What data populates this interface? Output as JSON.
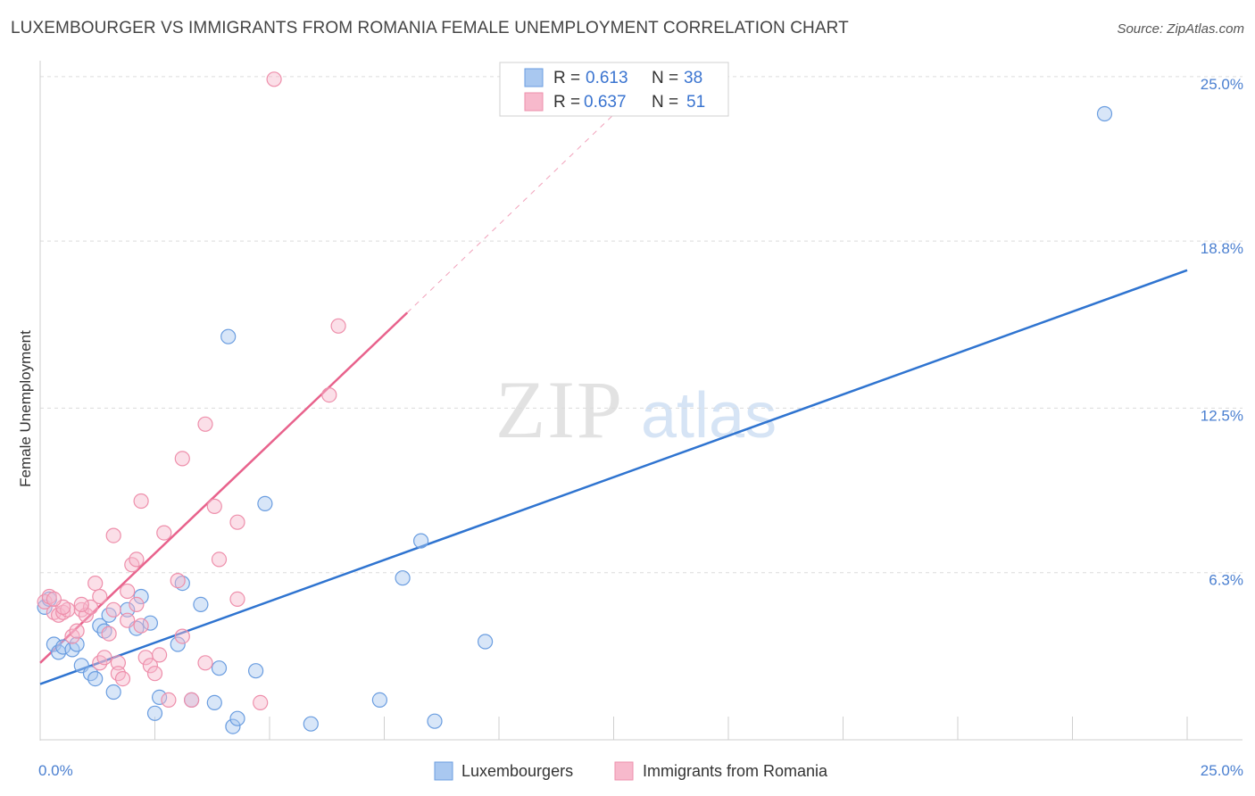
{
  "header": {
    "title": "LUXEMBOURGER VS IMMIGRANTS FROM ROMANIA FEMALE UNEMPLOYMENT CORRELATION CHART",
    "source": "Source: ZipAtlas.com"
  },
  "watermark": {
    "zip": "ZIP",
    "atlas": "atlas"
  },
  "colors": {
    "blue_fill": "#a9c8f0",
    "blue_stroke": "#6a9de0",
    "blue_line": "#2f74d0",
    "pink_fill": "#f7b9cc",
    "pink_stroke": "#ee8fab",
    "pink_line": "#e8628c",
    "tick_text": "#4a7fd0",
    "grid": "#dcdcdc"
  },
  "legend": {
    "r_label": "R =",
    "n_label": "N =",
    "rows": [
      {
        "series": "Luxembourgers",
        "r": "0.613",
        "n": "38"
      },
      {
        "series": "Immigrants from Romania",
        "r": "0.637",
        "n": "51"
      }
    ]
  },
  "bottom_legend": [
    "Luxembourgers",
    "Immigrants from Romania"
  ],
  "chart_data": {
    "type": "scatter",
    "title": "LUXEMBOURGER VS IMMIGRANTS FROM ROMANIA FEMALE UNEMPLOYMENT CORRELATION CHART",
    "xlabel": "",
    "ylabel": "Female Unemployment",
    "xlim": [
      0,
      25
    ],
    "ylim": [
      0,
      25.6
    ],
    "x_tick_labels": [
      {
        "value": 0,
        "label": "0.0%"
      },
      {
        "value": 25,
        "label": "25.0%"
      }
    ],
    "y_tick_labels": [
      {
        "value": 6.3,
        "label": "6.3%"
      },
      {
        "value": 12.5,
        "label": "12.5%"
      },
      {
        "value": 18.8,
        "label": "18.8%"
      },
      {
        "value": 25.0,
        "label": "25.0%"
      }
    ],
    "y_gridlines": [
      6.3,
      12.5,
      18.8,
      25.0
    ],
    "x_minor_ticks": [
      2.5,
      5,
      7.5,
      10,
      12.5,
      15,
      17.5,
      20,
      22.5,
      25
    ],
    "series": [
      {
        "name": "Luxembourgers",
        "r": 0.613,
        "n": 38,
        "trend": {
          "x0": 0,
          "y0": 2.1,
          "x1": 25,
          "y1": 17.7,
          "dashed_to": null
        },
        "points": [
          [
            0.1,
            5.0
          ],
          [
            0.2,
            5.3
          ],
          [
            0.3,
            3.6
          ],
          [
            0.4,
            3.3
          ],
          [
            0.5,
            3.5
          ],
          [
            0.7,
            3.4
          ],
          [
            0.8,
            3.6
          ],
          [
            0.9,
            2.8
          ],
          [
            1.1,
            2.5
          ],
          [
            1.2,
            2.3
          ],
          [
            1.3,
            4.3
          ],
          [
            1.4,
            4.1
          ],
          [
            1.5,
            4.7
          ],
          [
            1.6,
            1.8
          ],
          [
            1.9,
            4.9
          ],
          [
            2.1,
            4.2
          ],
          [
            2.2,
            5.4
          ],
          [
            2.4,
            4.4
          ],
          [
            2.5,
            1.0
          ],
          [
            2.6,
            1.6
          ],
          [
            3.0,
            3.6
          ],
          [
            3.1,
            5.9
          ],
          [
            3.3,
            1.5
          ],
          [
            3.5,
            5.1
          ],
          [
            3.8,
            1.4
          ],
          [
            3.9,
            2.7
          ],
          [
            4.1,
            15.2
          ],
          [
            4.2,
            0.5
          ],
          [
            4.3,
            0.8
          ],
          [
            4.7,
            2.6
          ],
          [
            4.9,
            8.9
          ],
          [
            5.9,
            0.6
          ],
          [
            7.4,
            1.5
          ],
          [
            7.9,
            6.1
          ],
          [
            8.3,
            7.5
          ],
          [
            8.6,
            0.7
          ],
          [
            9.7,
            3.7
          ],
          [
            23.2,
            23.6
          ]
        ]
      },
      {
        "name": "Immigrants from Romania",
        "r": 0.637,
        "n": 51,
        "trend": {
          "x0": 0,
          "y0": 2.9,
          "x1": 8.0,
          "y1": 16.1,
          "dashed_to": {
            "x": 13.0,
            "y": 24.4
          }
        },
        "points": [
          [
            0.1,
            5.2
          ],
          [
            0.2,
            5.4
          ],
          [
            0.3,
            4.8
          ],
          [
            0.4,
            4.7
          ],
          [
            0.5,
            4.8
          ],
          [
            0.6,
            4.9
          ],
          [
            0.7,
            3.9
          ],
          [
            0.8,
            4.1
          ],
          [
            0.9,
            4.9
          ],
          [
            1.0,
            4.7
          ],
          [
            1.1,
            5.0
          ],
          [
            1.2,
            5.9
          ],
          [
            1.3,
            5.4
          ],
          [
            1.3,
            2.9
          ],
          [
            1.4,
            3.1
          ],
          [
            1.5,
            4.0
          ],
          [
            1.6,
            4.9
          ],
          [
            1.6,
            7.7
          ],
          [
            1.7,
            2.9
          ],
          [
            1.7,
            2.5
          ],
          [
            1.8,
            2.3
          ],
          [
            1.9,
            4.5
          ],
          [
            1.9,
            5.6
          ],
          [
            2.0,
            6.6
          ],
          [
            2.1,
            6.8
          ],
          [
            2.1,
            5.1
          ],
          [
            2.2,
            9.0
          ],
          [
            2.2,
            4.3
          ],
          [
            2.3,
            3.1
          ],
          [
            2.4,
            2.8
          ],
          [
            2.5,
            2.5
          ],
          [
            2.6,
            3.2
          ],
          [
            2.7,
            7.8
          ],
          [
            2.8,
            1.5
          ],
          [
            3.0,
            6.0
          ],
          [
            3.1,
            3.9
          ],
          [
            3.1,
            10.6
          ],
          [
            3.3,
            1.5
          ],
          [
            3.6,
            2.9
          ],
          [
            3.6,
            11.9
          ],
          [
            3.8,
            8.8
          ],
          [
            3.9,
            6.8
          ],
          [
            4.3,
            8.2
          ],
          [
            4.3,
            5.3
          ],
          [
            4.8,
            1.4
          ],
          [
            6.3,
            13.0
          ],
          [
            6.5,
            15.6
          ],
          [
            5.1,
            24.9
          ],
          [
            0.9,
            5.1
          ],
          [
            0.5,
            5.0
          ],
          [
            0.3,
            5.3
          ]
        ]
      }
    ]
  }
}
